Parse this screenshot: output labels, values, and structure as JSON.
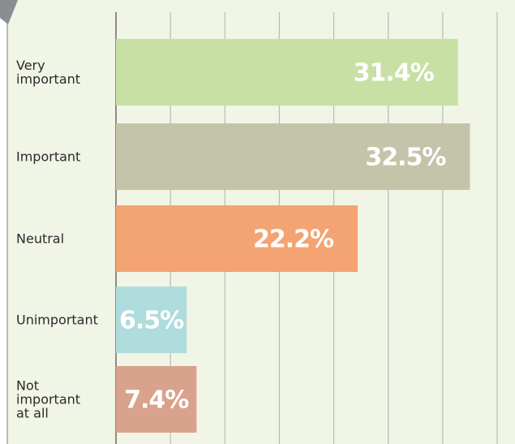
{
  "chart_data": {
    "type": "barh",
    "categories": [
      "Very\nimportant",
      "Important",
      "Neutral",
      "Unimportant",
      "Not\nimportant\nat all"
    ],
    "values": [
      31.4,
      32.5,
      22.2,
      6.5,
      7.4
    ],
    "value_labels": [
      "31.4%",
      "32.5%",
      "22.2%",
      "6.5%",
      "7.4%"
    ],
    "colors": [
      "#c8e0a4",
      "#c4c4aa",
      "#f4a373",
      "#afdcdc",
      "#d9a28c"
    ],
    "xlim": [
      0,
      35
    ],
    "xticks": [
      0,
      5,
      10,
      15,
      20,
      25,
      30,
      35
    ],
    "grid": true
  }
}
